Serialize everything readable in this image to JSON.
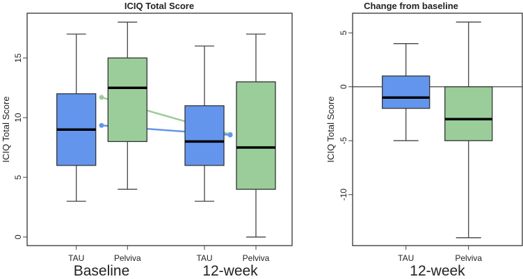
{
  "chart_data": [
    {
      "type": "box",
      "title": "ICIQ Total Score",
      "ylabel": "ICIQ Total Score",
      "ylim": [
        -0.74,
        18.7
      ],
      "yticks": [
        "0",
        "5",
        "10",
        "15"
      ],
      "groups": [
        "Baseline",
        "12-week"
      ],
      "boxes": [
        {
          "group": "Baseline",
          "label": "TAU",
          "color": "#6495ED",
          "min": 3,
          "q1": 6,
          "median": 9,
          "q3": 12,
          "max": 17
        },
        {
          "group": "Baseline",
          "label": "Pelviva",
          "color": "#9ACD9A",
          "min": 4,
          "q1": 8,
          "median": 12.5,
          "q3": 15,
          "max": 18
        },
        {
          "group": "12-week",
          "label": "TAU",
          "color": "#6495ED",
          "min": 3,
          "q1": 6,
          "median": 8,
          "q3": 11,
          "max": 16
        },
        {
          "group": "12-week",
          "label": "Pelviva",
          "color": "#9ACD9A",
          "min": 0,
          "q1": 4,
          "median": 7.5,
          "q3": 13,
          "max": 17
        }
      ],
      "mean_lines": [
        {
          "name": "Pelviva mean",
          "color": "#9ACD9A",
          "values": [
            11.7,
            8.6
          ]
        },
        {
          "name": "TAU mean",
          "color": "#6495ED",
          "values": [
            9.35,
            8.55
          ]
        }
      ]
    },
    {
      "type": "box",
      "title": "Change from baseline",
      "ylabel": "ICIQ Total Score",
      "ylim": [
        -14.8,
        6.6
      ],
      "yticks": [
        "-10",
        "-5",
        "0",
        "5"
      ],
      "groups": [
        "12-week"
      ],
      "reference_line": 0,
      "boxes": [
        {
          "group": "12-week",
          "label": "TAU",
          "color": "#6495ED",
          "min": -5,
          "q1": -2,
          "median": -1,
          "q3": 1,
          "max": 4
        },
        {
          "group": "12-week",
          "label": "Pelviva",
          "color": "#9ACD9A",
          "min": -14,
          "q1": -5,
          "median": -3,
          "q3": 0,
          "max": 6
        }
      ]
    }
  ]
}
